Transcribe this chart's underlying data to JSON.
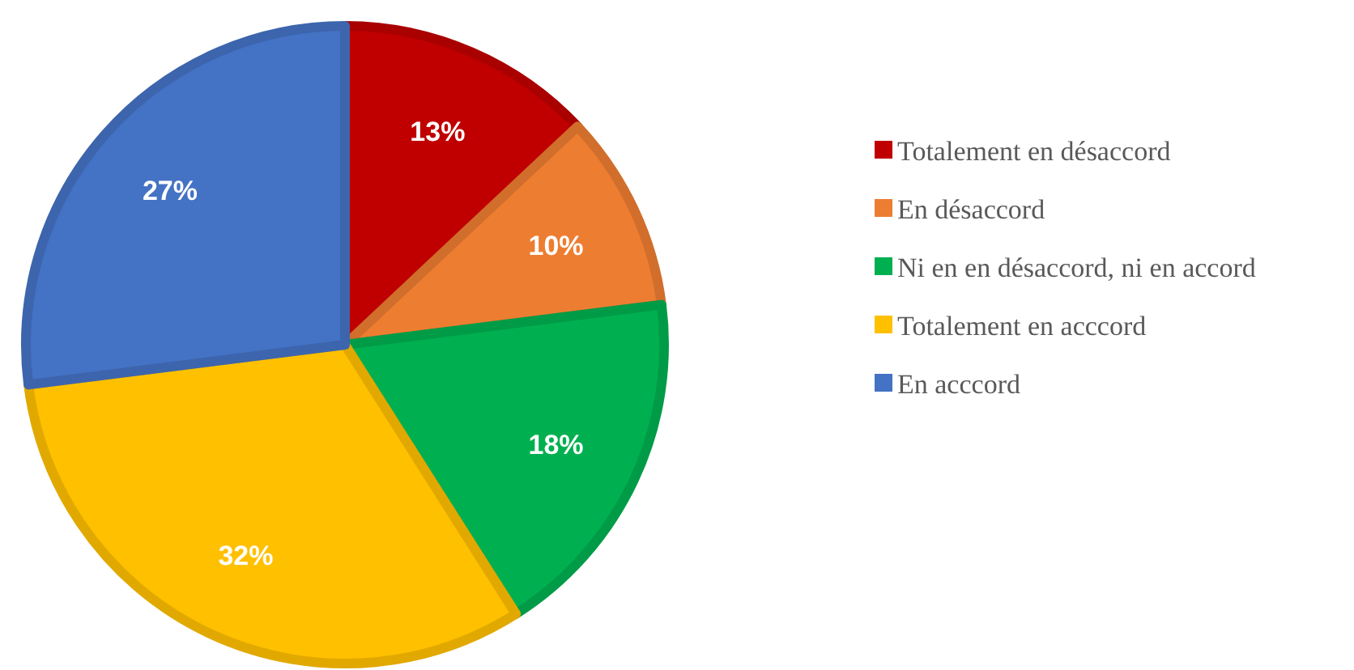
{
  "chart_data": {
    "type": "pie",
    "categories": [
      "Totalement en désaccord",
      "En désaccord",
      "Ni en en désaccord, ni en accord",
      "Totalement en acccord",
      "En acccord"
    ],
    "values": [
      13,
      10,
      18,
      32,
      27
    ],
    "colors": [
      "#c00000",
      "#ed7d31",
      "#00b050",
      "#ffc000",
      "#4472c4"
    ],
    "value_labels": [
      "13%",
      "10%",
      "18%",
      "32%",
      "27%"
    ],
    "legend": "right"
  }
}
